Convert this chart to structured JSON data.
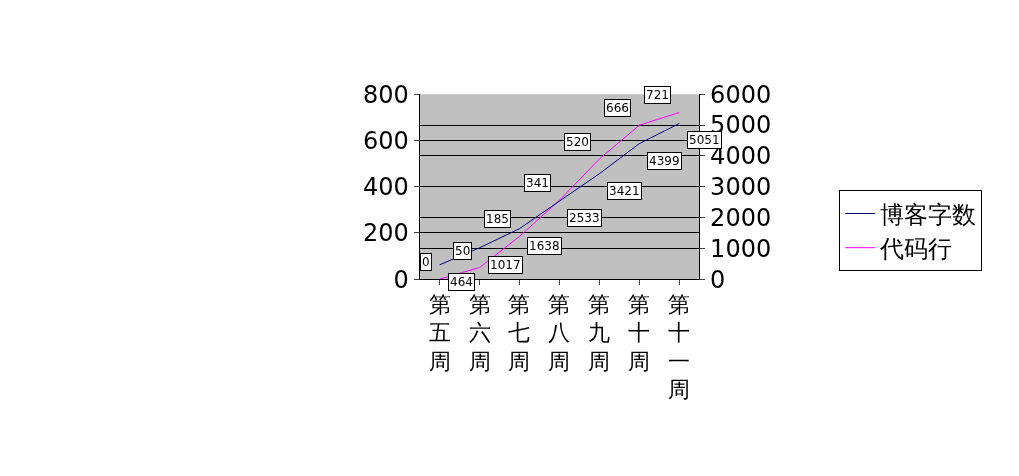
{
  "chart_data": {
    "type": "line",
    "categories": [
      "第五周",
      "第六周",
      "第七周",
      "第八周",
      "第九周",
      "第十周",
      "第十一周"
    ],
    "series": [
      {
        "name": "博客字数",
        "color": "#000080",
        "axis": "y2",
        "values": [
          464,
          1017,
          1638,
          2533,
          3421,
          4399,
          5051
        ]
      },
      {
        "name": "代码行",
        "color": "#ff00ff",
        "values": [
          0,
          50,
          185,
          341,
          520,
          666,
          721
        ]
      }
    ],
    "ylim": [
      0,
      800
    ],
    "yticks": [
      0,
      200,
      400,
      600,
      800
    ],
    "y2lim": [
      0,
      6000
    ],
    "y2ticks": [
      0,
      1000,
      2000,
      3000,
      4000,
      5000,
      6000
    ],
    "grid": true,
    "legend": "right",
    "data_labels": true,
    "marker": "none",
    "line_style": "solid"
  }
}
